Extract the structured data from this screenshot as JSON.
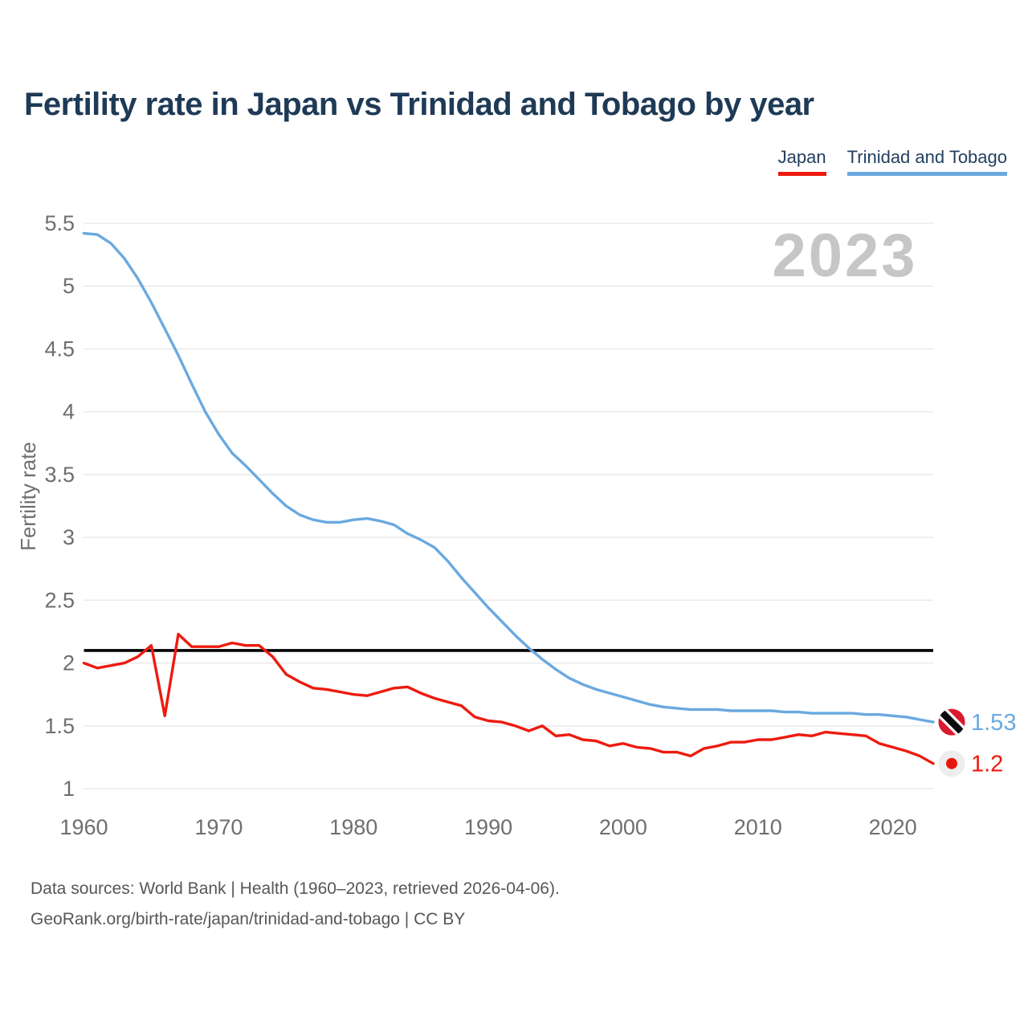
{
  "page": {
    "title": "Fertility rate in Japan vs Trinidad and Tobago by year",
    "watermark_year": "2023"
  },
  "legend": {
    "items": [
      {
        "label": "Japan",
        "color": "#ed1b0f"
      },
      {
        "label": "Trinidad and Tobago",
        "color": "#6aa9e0"
      }
    ]
  },
  "footer": {
    "sources": "Data sources: World Bank | Health (1960–2023, retrieved 2026-04-06).",
    "attribution": "GeoRank.org/birth-rate/japan/trinidad-and-tobago | CC BY"
  },
  "chart_data": {
    "type": "line",
    "title": "Fertility rate in Japan vs Trinidad and Tobago by year",
    "xlabel": "",
    "ylabel": "Fertility rate",
    "xlim": [
      1960,
      2023
    ],
    "ylim": [
      1,
      5.5
    ],
    "grid": true,
    "legend_position": "top-right",
    "watermark": "2023",
    "reference_line": {
      "value": 2.1,
      "color": "#000000",
      "meaning": "replacement-level line drawn on chart"
    },
    "y_ticks": [
      "1",
      "1.5",
      "2",
      "2.5",
      "3",
      "3.5",
      "4",
      "4.5",
      "5",
      "5.5"
    ],
    "x_ticks": [
      "1960",
      "1970",
      "1980",
      "1990",
      "2000",
      "2010",
      "2020"
    ],
    "x": [
      1960,
      1961,
      1962,
      1963,
      1964,
      1965,
      1966,
      1967,
      1968,
      1969,
      1970,
      1971,
      1972,
      1973,
      1974,
      1975,
      1976,
      1977,
      1978,
      1979,
      1980,
      1981,
      1982,
      1983,
      1984,
      1985,
      1986,
      1987,
      1988,
      1989,
      1990,
      1991,
      1992,
      1993,
      1994,
      1995,
      1996,
      1997,
      1998,
      1999,
      2000,
      2001,
      2002,
      2003,
      2004,
      2005,
      2006,
      2007,
      2008,
      2009,
      2010,
      2011,
      2012,
      2013,
      2014,
      2015,
      2016,
      2017,
      2018,
      2019,
      2020,
      2021,
      2022,
      2023
    ],
    "series": [
      {
        "name": "Japan",
        "color": "#ed1b0f",
        "end_label": "1.2",
        "flag": "japan",
        "values": [
          2.0,
          1.96,
          1.98,
          2.0,
          2.05,
          2.14,
          1.58,
          2.23,
          2.13,
          2.13,
          2.13,
          2.16,
          2.14,
          2.14,
          2.05,
          1.91,
          1.85,
          1.8,
          1.79,
          1.77,
          1.75,
          1.74,
          1.77,
          1.8,
          1.81,
          1.76,
          1.72,
          1.69,
          1.66,
          1.57,
          1.54,
          1.53,
          1.5,
          1.46,
          1.5,
          1.42,
          1.43,
          1.39,
          1.38,
          1.34,
          1.36,
          1.33,
          1.32,
          1.29,
          1.29,
          1.26,
          1.32,
          1.34,
          1.37,
          1.37,
          1.39,
          1.39,
          1.41,
          1.43,
          1.42,
          1.45,
          1.44,
          1.43,
          1.42,
          1.36,
          1.33,
          1.3,
          1.26,
          1.2
        ]
      },
      {
        "name": "Trinidad and Tobago",
        "color": "#6aa9e0",
        "end_label": "1.53",
        "flag": "trinidad-and-tobago",
        "values": [
          5.42,
          5.41,
          5.34,
          5.22,
          5.06,
          4.87,
          4.66,
          4.45,
          4.22,
          4.0,
          3.82,
          3.67,
          3.57,
          3.46,
          3.35,
          3.25,
          3.18,
          3.14,
          3.12,
          3.12,
          3.14,
          3.15,
          3.13,
          3.1,
          3.03,
          2.98,
          2.92,
          2.81,
          2.68,
          2.56,
          2.44,
          2.33,
          2.22,
          2.12,
          2.03,
          1.95,
          1.88,
          1.83,
          1.79,
          1.76,
          1.73,
          1.7,
          1.67,
          1.65,
          1.64,
          1.63,
          1.63,
          1.63,
          1.62,
          1.62,
          1.62,
          1.62,
          1.61,
          1.61,
          1.6,
          1.6,
          1.6,
          1.6,
          1.59,
          1.59,
          1.58,
          1.57,
          1.55,
          1.53
        ]
      }
    ]
  }
}
